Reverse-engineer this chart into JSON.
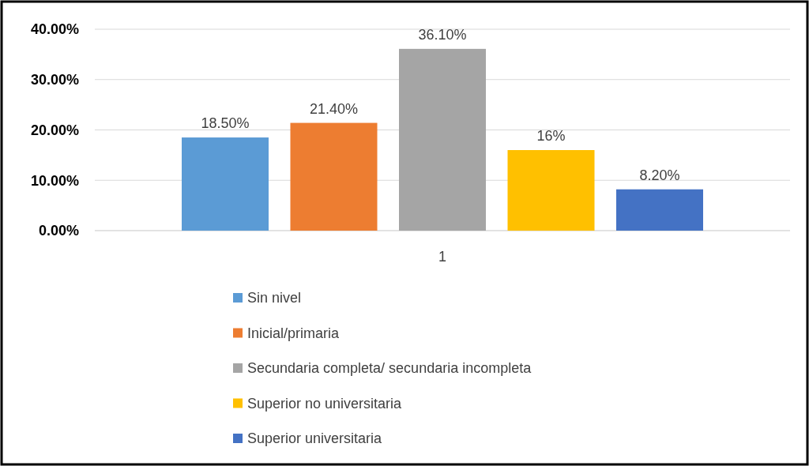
{
  "chart_data": {
    "type": "bar",
    "categories": [
      "1"
    ],
    "series": [
      {
        "name": "Sin nivel",
        "color": "#5b9bd5",
        "values": [
          18.5
        ],
        "value_labels": [
          "18.50%"
        ]
      },
      {
        "name": "Inicial/primaria",
        "color": "#ed7d31",
        "values": [
          21.4
        ],
        "value_labels": [
          "21.40%"
        ]
      },
      {
        "name": "Secundaria completa/ secundaria incompleta",
        "color": "#a5a5a5",
        "values": [
          36.1
        ],
        "value_labels": [
          "36.10%"
        ]
      },
      {
        "name": "Superior no universitaria",
        "color": "#ffc000",
        "values": [
          16
        ],
        "value_labels": [
          "16%"
        ]
      },
      {
        "name": "Superior universitaria",
        "color": "#4472c4",
        "values": [
          8.2
        ],
        "value_labels": [
          "8.20%"
        ]
      }
    ],
    "ylim": [
      0,
      40
    ],
    "yticks": [
      {
        "value": 0,
        "label": "0.00%"
      },
      {
        "value": 10,
        "label": "10.00%"
      },
      {
        "value": 20,
        "label": "20.00%"
      },
      {
        "value": 30,
        "label": "30.00%"
      },
      {
        "value": 40,
        "label": "40.00%"
      }
    ],
    "grid": "y",
    "legend": "bottom"
  }
}
